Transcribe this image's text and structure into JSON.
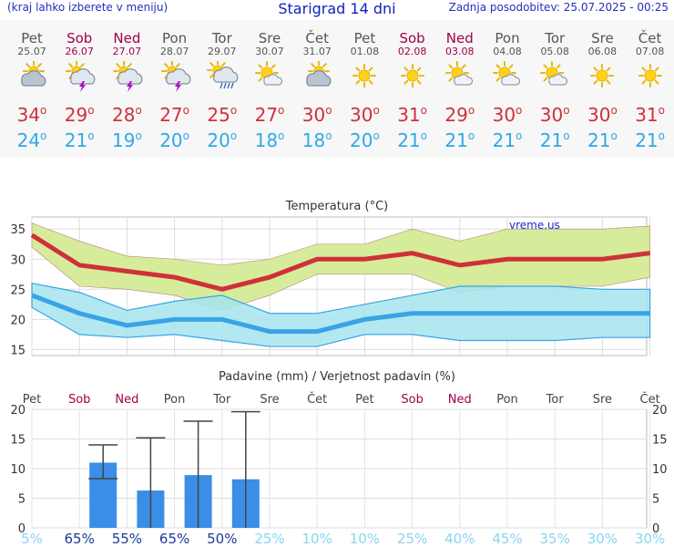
{
  "header": {
    "hint": "(kraj lahko izberete v meniju)",
    "title": "Starigrad 14 dni",
    "updated": "Zadnja posodobitev: 25.07.2025 - 00:25"
  },
  "days": [
    {
      "name": "Pet",
      "date": "25.07",
      "weekend": false,
      "icon": "partly-cloudy-icon",
      "tmax": "34",
      "tmin": "24"
    },
    {
      "name": "Sob",
      "date": "26.07",
      "weekend": true,
      "icon": "sun-cloud-thunder-icon",
      "tmax": "29",
      "tmin": "21"
    },
    {
      "name": "Ned",
      "date": "27.07",
      "weekend": true,
      "icon": "sun-cloud-thunder-icon",
      "tmax": "28",
      "tmin": "19"
    },
    {
      "name": "Pon",
      "date": "28.07",
      "weekend": false,
      "icon": "sun-cloud-thunder-icon",
      "tmax": "27",
      "tmin": "20"
    },
    {
      "name": "Tor",
      "date": "29.07",
      "weekend": false,
      "icon": "sun-cloud-rain-icon",
      "tmax": "25",
      "tmin": "20"
    },
    {
      "name": "Sre",
      "date": "30.07",
      "weekend": false,
      "icon": "mostly-sunny-icon",
      "tmax": "27",
      "tmin": "18"
    },
    {
      "name": "Čet",
      "date": "31.07",
      "weekend": false,
      "icon": "partly-cloudy-icon",
      "tmax": "30",
      "tmin": "18"
    },
    {
      "name": "Pet",
      "date": "01.08",
      "weekend": false,
      "icon": "sun-icon",
      "tmax": "30",
      "tmin": "20"
    },
    {
      "name": "Sob",
      "date": "02.08",
      "weekend": true,
      "icon": "sun-icon",
      "tmax": "31",
      "tmin": "21"
    },
    {
      "name": "Ned",
      "date": "03.08",
      "weekend": true,
      "icon": "mostly-sunny-icon",
      "tmax": "29",
      "tmin": "21"
    },
    {
      "name": "Pon",
      "date": "04.08",
      "weekend": false,
      "icon": "mostly-sunny-icon",
      "tmax": "30",
      "tmin": "21"
    },
    {
      "name": "Tor",
      "date": "05.08",
      "weekend": false,
      "icon": "mostly-sunny-icon",
      "tmax": "30",
      "tmin": "21"
    },
    {
      "name": "Sre",
      "date": "06.08",
      "weekend": false,
      "icon": "sun-icon",
      "tmax": "30",
      "tmin": "21"
    },
    {
      "name": "Čet",
      "date": "07.08",
      "weekend": false,
      "icon": "sun-icon",
      "tmax": "31",
      "tmin": "21"
    }
  ],
  "degree_symbol": "o",
  "chart_data": [
    {
      "type": "line",
      "title": "Temperatura",
      "title_unit": "(°C)",
      "brand": "vreme.us",
      "ylim": [
        14,
        37
      ],
      "yticks": [
        "15",
        "20",
        "25",
        "30",
        "35"
      ],
      "x": [
        0,
        1,
        2,
        3,
        4,
        5,
        6,
        7,
        8,
        9,
        10,
        11,
        12,
        13
      ],
      "series": [
        {
          "name": "Tmax",
          "values": [
            34,
            29,
            28,
            27,
            25,
            27,
            30,
            30,
            31,
            29,
            30,
            30,
            30,
            31
          ]
        },
        {
          "name": "Tmax upper",
          "values": [
            36,
            33,
            30.5,
            30,
            29,
            30,
            32.5,
            32.5,
            35,
            33,
            35,
            35,
            35,
            35.5
          ]
        },
        {
          "name": "Tmax lower",
          "values": [
            32,
            25.5,
            25,
            24,
            21.5,
            24,
            27.5,
            27.5,
            27.5,
            24.5,
            25.5,
            25.5,
            25.5,
            27
          ]
        },
        {
          "name": "Tmin",
          "values": [
            24,
            21,
            19,
            20,
            20,
            18,
            18,
            20,
            21,
            21,
            21,
            21,
            21,
            21
          ]
        },
        {
          "name": "Tmin upper",
          "values": [
            26,
            24.5,
            21.5,
            23,
            24,
            21,
            21,
            22.5,
            24,
            25.5,
            25.5,
            25.5,
            25,
            25
          ]
        },
        {
          "name": "Tmin lower",
          "values": [
            22,
            17.5,
            17,
            17.5,
            16.5,
            15.5,
            15.5,
            17.5,
            17.5,
            16.5,
            16.5,
            16.5,
            17,
            17
          ]
        }
      ]
    },
    {
      "type": "bar",
      "title": "Padavine (mm) / Verjetnost padavin (%)",
      "ylim": [
        0,
        20
      ],
      "yticks": [
        "0",
        "5",
        "10",
        "15",
        "20"
      ],
      "categories": [
        "Pet",
        "Sob",
        "Ned",
        "Pon",
        "Tor",
        "Sre",
        "Čet",
        "Pet",
        "Sob",
        "Ned",
        "Pon",
        "Tor",
        "Sre",
        "Čet"
      ],
      "weekend": [
        false,
        true,
        true,
        false,
        false,
        false,
        false,
        false,
        true,
        true,
        false,
        false,
        false,
        false
      ],
      "values": [
        0,
        11,
        6.3,
        8.9,
        8.2,
        0,
        0,
        0,
        0,
        0,
        0,
        0,
        0,
        0
      ],
      "error_low": [
        0,
        8.3,
        0,
        0,
        0,
        0,
        0,
        0,
        0,
        0,
        0,
        0,
        0,
        0
      ],
      "error_high": [
        0,
        14,
        15.2,
        18,
        19.6,
        0,
        0,
        0,
        0,
        0,
        0,
        0,
        0,
        0
      ],
      "probability": [
        "5%",
        "65%",
        "55%",
        "65%",
        "50%",
        "25%",
        "10%",
        "10%",
        "25%",
        "40%",
        "45%",
        "35%",
        "30%",
        "30%"
      ]
    }
  ],
  "colors": {
    "tmax_line": "#d0303a",
    "tmax_band": "#d6ec9a",
    "tmin_line": "#38a4e6",
    "tmin_band": "#a6e4ee",
    "overlap": "#8ccf8a",
    "bar": "#3a8ee6",
    "weekend": "#a0004a",
    "pct_high": "#1a3a9a",
    "pct_low": "#8ad4f2"
  }
}
